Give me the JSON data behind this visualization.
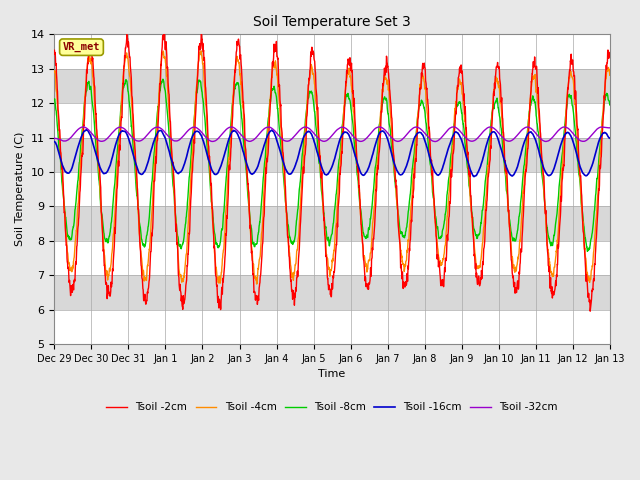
{
  "title": "Soil Temperature Set 3",
  "xlabel": "Time",
  "ylabel": "Soil Temperature (C)",
  "ylim": [
    5.0,
    14.0
  ],
  "yticks": [
    5.0,
    6.0,
    7.0,
    8.0,
    9.0,
    10.0,
    11.0,
    12.0,
    13.0,
    14.0
  ],
  "annotation": "VR_met",
  "legend_labels": [
    "Tsoil -2cm",
    "Tsoil -4cm",
    "Tsoil -8cm",
    "Tsoil -16cm",
    "Tsoil -32cm"
  ],
  "line_colors": [
    "#FF0000",
    "#FF8C00",
    "#00CC00",
    "#0000CD",
    "#9900CC"
  ],
  "line_widths": [
    1.0,
    1.0,
    1.0,
    1.2,
    1.0
  ],
  "background_color": "#E8E8E8",
  "white_band": "#FFFFFF",
  "gray_band": "#D8D8D8",
  "xtick_labels": [
    "Dec 29",
    "Dec 30",
    "Dec 31",
    "Jan 1",
    "Jan 2",
    "Jan 3",
    "Jan 4",
    "Jan 5",
    "Jan 6",
    "Jan 7",
    "Jan 8",
    "Jan 9",
    "Jan 10",
    "Jan 11",
    "Jan 12",
    "Jan 13"
  ],
  "xtick_positions": [
    0,
    1,
    2,
    3,
    4,
    5,
    6,
    7,
    8,
    9,
    10,
    11,
    12,
    13,
    14,
    15
  ]
}
